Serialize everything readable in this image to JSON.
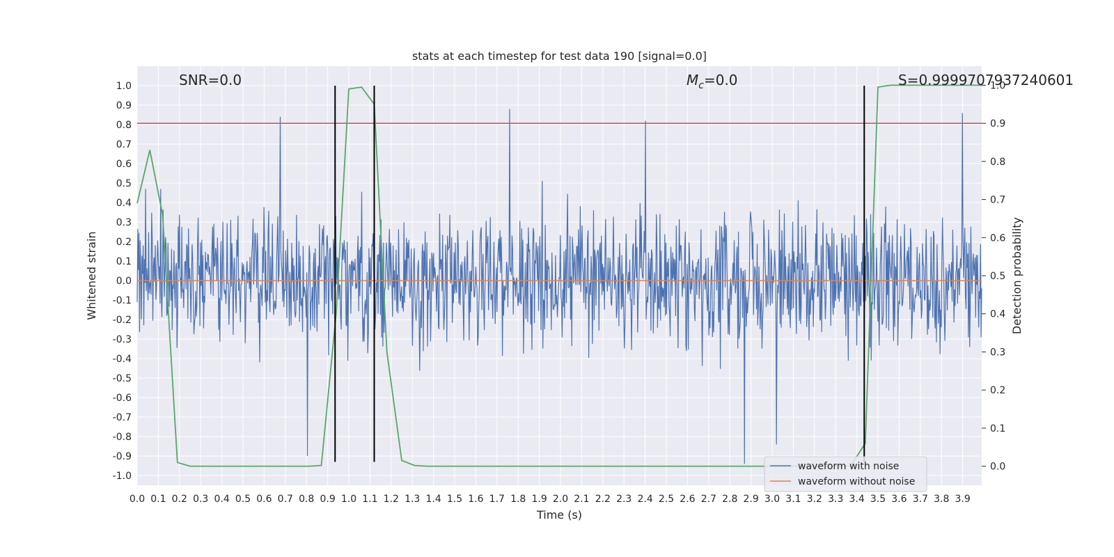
{
  "chart_data": {
    "type": "line",
    "title": "stats at each timestep for test data 190 [signal=0.0]",
    "xlabel": "Time (s)",
    "ylabel": "Whitened strain",
    "y2label": "Detection probability",
    "xlim": [
      0.0,
      3.99
    ],
    "ylim": [
      -1.05,
      1.1
    ],
    "y2lim": [
      -0.05,
      1.05
    ],
    "x_ticks": [
      "0.0",
      "0.1",
      "0.2",
      "0.3",
      "0.4",
      "0.5",
      "0.6",
      "0.7",
      "0.8",
      "0.9",
      "1.0",
      "1.1",
      "1.2",
      "1.3",
      "1.4",
      "1.5",
      "1.6",
      "1.7",
      "1.8",
      "1.9",
      "2.0",
      "2.1",
      "2.2",
      "2.3",
      "2.4",
      "2.5",
      "2.6",
      "2.7",
      "2.8",
      "2.9",
      "3.0",
      "3.1",
      "3.2",
      "3.3",
      "3.4",
      "3.5",
      "3.6",
      "3.7",
      "3.8",
      "3.9"
    ],
    "y_ticks": [
      "1.0",
      "0.9",
      "0.8",
      "0.7",
      "0.6",
      "0.5",
      "0.4",
      "0.3",
      "0.2",
      "0.1",
      "0.0",
      "-0.1",
      "-0.2",
      "-0.3",
      "-0.4",
      "-0.5",
      "-0.6",
      "-0.7",
      "-0.8",
      "-0.9",
      "-1.0"
    ],
    "y2_ticks": [
      "1.0",
      "0.9",
      "0.8",
      "0.7",
      "0.6",
      "0.5",
      "0.4",
      "0.3",
      "0.2",
      "0.1",
      "0.0"
    ],
    "annotations": {
      "snr": "SNR=0.0",
      "mc_symbol": "M",
      "mc_sub": "c",
      "mc_value": "=0.0",
      "s": "S=0.9999707937240601"
    },
    "threshold": {
      "axis": "right",
      "value": 0.9,
      "color": "#c44e52"
    },
    "vlines": [
      0.935,
      1.12,
      3.435
    ],
    "vline_ymax": 1.0,
    "vline_ymin": -0.93,
    "series": [
      {
        "name": "waveform with noise",
        "color": "#4c72b0",
        "generated": true,
        "t_start": 0.0,
        "t_end": 3.99,
        "points": 1400,
        "amplitude_typical": 0.3,
        "extremes": [
          {
            "x": 0.675,
            "y": 0.84
          },
          {
            "x": 1.76,
            "y": 0.88
          },
          {
            "x": 2.4,
            "y": 0.82
          },
          {
            "x": 3.9,
            "y": 0.86
          },
          {
            "x": 0.805,
            "y": -0.9
          },
          {
            "x": 2.87,
            "y": -0.94
          },
          {
            "x": 3.02,
            "y": -0.84
          }
        ]
      },
      {
        "name": "waveform without noise",
        "color": "#dd8452",
        "x": [
          0.0,
          3.99
        ],
        "y": [
          0.0,
          0.0
        ]
      },
      {
        "name": "detection probability",
        "color": "#55a868",
        "axis": "right",
        "x": [
          0.0,
          0.06,
          0.12,
          0.19,
          0.25,
          0.31,
          0.38,
          0.44,
          0.5,
          0.56,
          0.62,
          0.69,
          0.75,
          0.81,
          0.87,
          0.94,
          1.0,
          1.06,
          1.12,
          1.18,
          1.25,
          1.31,
          1.37,
          1.44,
          1.5,
          1.56,
          1.62,
          1.69,
          1.75,
          1.81,
          1.87,
          1.94,
          2.0,
          2.06,
          2.12,
          2.19,
          2.25,
          2.31,
          2.37,
          2.44,
          2.5,
          2.56,
          2.62,
          2.69,
          2.75,
          2.81,
          2.87,
          2.94,
          3.0,
          3.06,
          3.12,
          3.19,
          3.25,
          3.31,
          3.37,
          3.44,
          3.5,
          3.56,
          3.62,
          3.69,
          3.75,
          3.81,
          3.87,
          3.94,
          3.99
        ],
        "y": [
          0.69,
          0.83,
          0.66,
          0.01,
          0.0,
          0.0,
          0.0,
          0.0,
          0.0,
          0.0,
          0.0,
          0.0,
          0.0,
          0.0,
          0.002,
          0.4,
          0.99,
          0.995,
          0.95,
          0.3,
          0.015,
          0.002,
          0.0,
          0.0,
          0.0,
          0.0,
          0.0,
          0.0,
          0.0,
          0.0,
          0.0,
          0.0,
          0.0,
          0.0,
          0.0,
          0.0,
          0.0,
          0.0,
          0.0,
          0.0,
          0.0,
          0.0,
          0.0,
          0.0,
          0.0,
          0.0,
          0.0,
          0.0,
          0.0,
          0.0,
          0.0,
          0.0,
          0.0,
          0.0,
          0.0,
          0.06,
          0.995,
          1.0,
          1.0,
          1.0,
          1.0,
          1.0,
          1.0,
          1.0,
          1.0
        ]
      }
    ],
    "legend": {
      "position": "lower-right",
      "entries": [
        {
          "label": "waveform with noise",
          "color": "#4c72b0"
        },
        {
          "label": "waveform without noise",
          "color": "#dd8452"
        }
      ]
    },
    "grid": true,
    "colors": {
      "plot_bg": "#eaeaf2",
      "grid": "#ffffff",
      "vline": "#000000"
    }
  }
}
